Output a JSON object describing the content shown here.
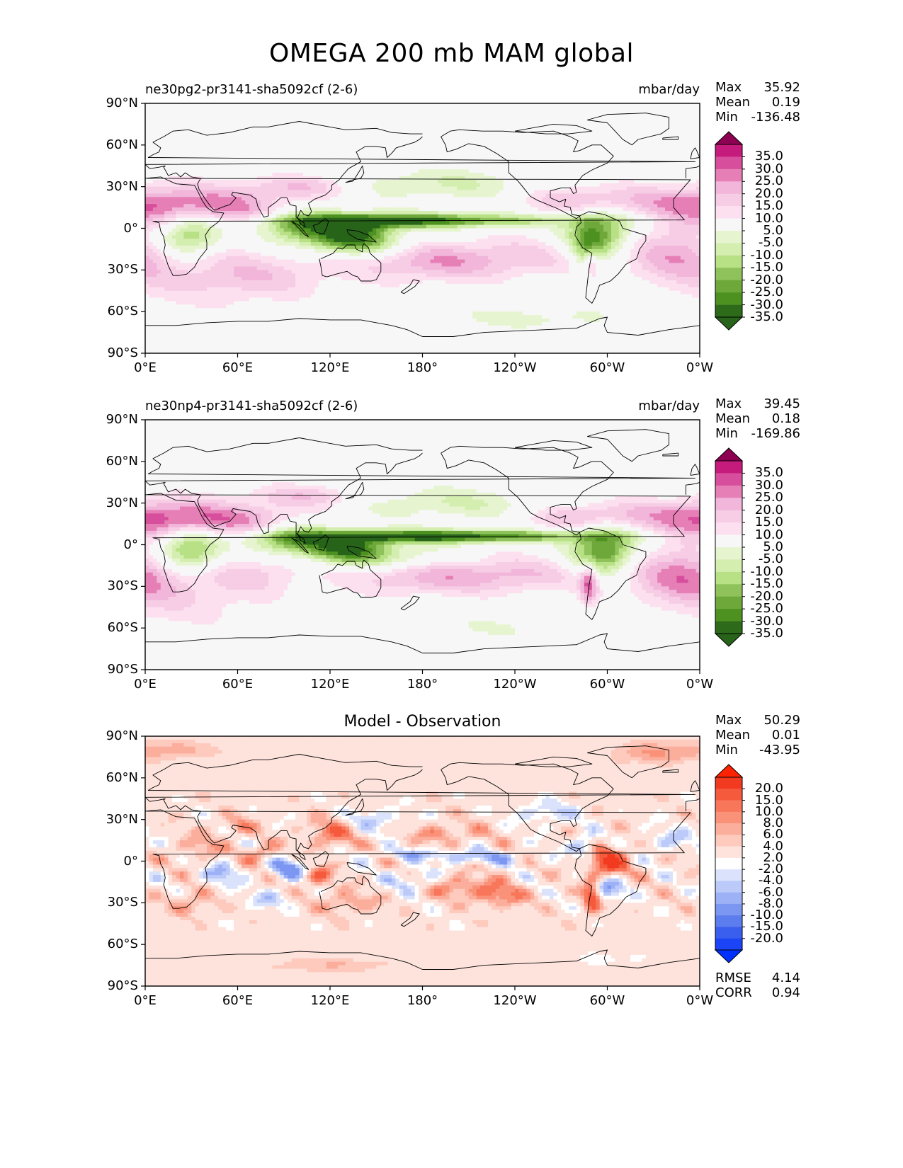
{
  "title": "OMEGA 200 mb MAM global",
  "chart_data": [
    {
      "type": "heatmap",
      "left_title": "ne30pg2-pr3141-sha5092cf (2-6)",
      "right_title": "mbar/day",
      "stats": [
        {
          "label": "Max",
          "value": "35.92"
        },
        {
          "label": "Mean",
          "value": "0.19"
        },
        {
          "label": "Min",
          "value": "-136.48"
        }
      ],
      "colorbar_levels": [
        "35.0",
        "30.0",
        "25.0",
        "20.0",
        "15.0",
        "10.0",
        "5.0",
        "-5.0",
        "-10.0",
        "-15.0",
        "-20.0",
        "-25.0",
        "-30.0",
        "-35.0"
      ],
      "colorbar_colors": [
        "#8e0152",
        "#c51b7d",
        "#d64e9c",
        "#e67fb6",
        "#f1b6da",
        "#f7cde6",
        "#fde0ef",
        "#f7f7f7",
        "#e6f5d0",
        "#d4eeb0",
        "#b8e186",
        "#8fc25a",
        "#6fa83a",
        "#4d9221",
        "#2d6a1a",
        "#276419"
      ],
      "x_ticks": [
        "0°E",
        "60°E",
        "120°E",
        "180°",
        "120°W",
        "60°W",
        "0°W"
      ],
      "y_ticks": [
        "90°N",
        "60°N",
        "30°N",
        "0°",
        "30°S",
        "60°S",
        "90°S"
      ],
      "xlim": [
        0,
        360
      ],
      "ylim": [
        -90,
        90
      ],
      "field": "experiment"
    },
    {
      "type": "heatmap",
      "left_title": "ne30np4-pr3141-sha5092cf (2-6)",
      "right_title": "mbar/day",
      "stats": [
        {
          "label": "Max",
          "value": "39.45"
        },
        {
          "label": "Mean",
          "value": "0.18"
        },
        {
          "label": "Min",
          "value": "-169.86"
        }
      ],
      "colorbar_levels": [
        "35.0",
        "30.0",
        "25.0",
        "20.0",
        "15.0",
        "10.0",
        "5.0",
        "-5.0",
        "-10.0",
        "-15.0",
        "-20.0",
        "-25.0",
        "-30.0",
        "-35.0"
      ],
      "colorbar_colors": [
        "#8e0152",
        "#c51b7d",
        "#d64e9c",
        "#e67fb6",
        "#f1b6da",
        "#f7cde6",
        "#fde0ef",
        "#f7f7f7",
        "#e6f5d0",
        "#d4eeb0",
        "#b8e186",
        "#8fc25a",
        "#6fa83a",
        "#4d9221",
        "#2d6a1a",
        "#276419"
      ],
      "x_ticks": [
        "0°E",
        "60°E",
        "120°E",
        "180°",
        "120°W",
        "60°W",
        "0°W"
      ],
      "y_ticks": [
        "90°N",
        "60°N",
        "30°N",
        "0°",
        "30°S",
        "60°S",
        "90°S"
      ],
      "xlim": [
        0,
        360
      ],
      "ylim": [
        -90,
        90
      ],
      "field": "reference"
    },
    {
      "type": "heatmap",
      "center_title": "Model - Observation",
      "stats": [
        {
          "label": "Max",
          "value": "50.29"
        },
        {
          "label": "Mean",
          "value": "0.01"
        },
        {
          "label": "Min",
          "value": "-43.95"
        }
      ],
      "colorbar_levels": [
        "20.0",
        "15.0",
        "10.0",
        "8.0",
        "6.0",
        "4.0",
        "2.0",
        "-2.0",
        "-4.0",
        "-6.0",
        "-8.0",
        "-10.0",
        "-15.0",
        "-20.0"
      ],
      "colorbar_colors": [
        "#ff2200",
        "#f23a20",
        "#f55a3c",
        "#f8765a",
        "#fa927a",
        "#fbae9c",
        "#fdcabd",
        "#fde3dc",
        "#ffffff",
        "#dbe2fb",
        "#bccafa",
        "#9db2f6",
        "#7c97f2",
        "#5c7ded",
        "#3a5fee",
        "#1a44f5",
        "#0030ff"
      ],
      "x_ticks": [
        "0°E",
        "60°E",
        "120°E",
        "180°",
        "120°W",
        "60°W",
        "0°W"
      ],
      "y_ticks": [
        "90°N",
        "60°N",
        "30°N",
        "0°",
        "30°S",
        "60°S",
        "90°S"
      ],
      "xlim": [
        0,
        360
      ],
      "ylim": [
        -90,
        90
      ],
      "rmse": {
        "label": "RMSE",
        "value": "4.14"
      },
      "corr": {
        "label": "CORR",
        "value": "0.94"
      },
      "field": "difference"
    }
  ]
}
